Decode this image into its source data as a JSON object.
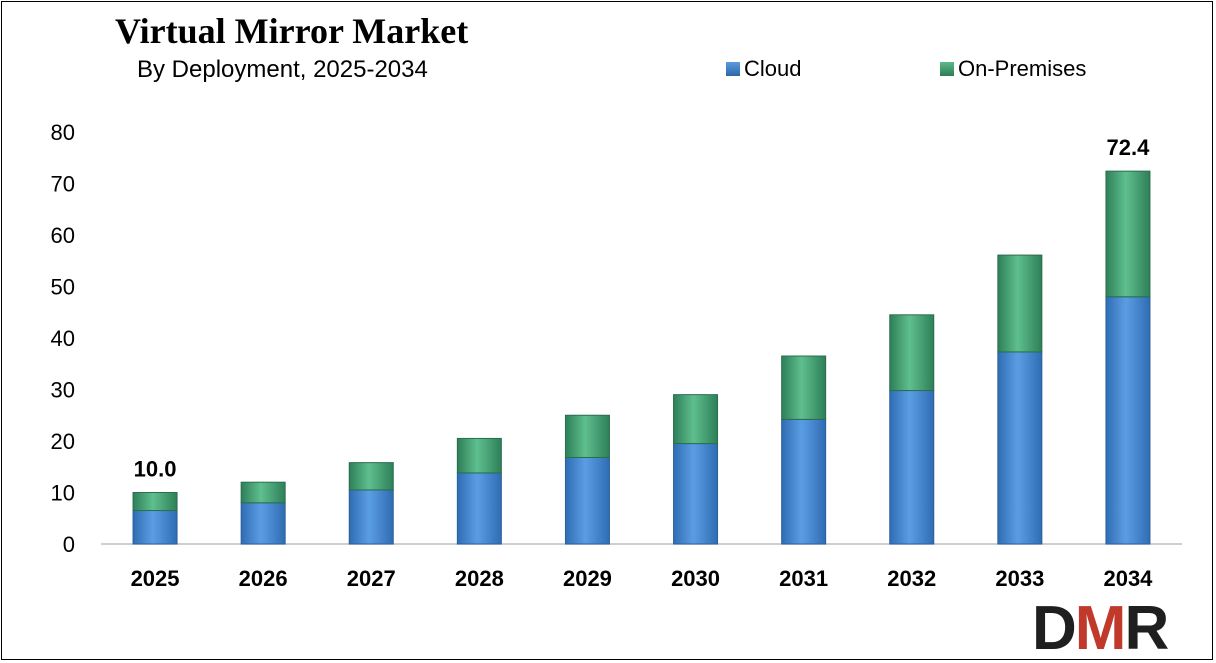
{
  "chart_data": {
    "type": "bar",
    "stacked": true,
    "title": "Virtual Mirror Market",
    "subtitle": "By Deployment, 2025-2034",
    "categories": [
      "2025",
      "2026",
      "2027",
      "2028",
      "2029",
      "2030",
      "2031",
      "2032",
      "2033",
      "2034"
    ],
    "series": [
      {
        "name": "Cloud",
        "color": "#3b7dc4",
        "values": [
          6.5,
          8.0,
          10.5,
          13.8,
          16.8,
          19.5,
          24.2,
          29.8,
          37.3,
          48.0
        ]
      },
      {
        "name": "On-Premises",
        "color": "#3f9a6c",
        "values": [
          3.5,
          4.0,
          5.3,
          6.7,
          8.2,
          9.5,
          12.3,
          14.7,
          18.8,
          24.4
        ]
      }
    ],
    "yticks": [
      "0",
      "10",
      "20",
      "30",
      "40",
      "50",
      "60",
      "70",
      "80"
    ],
    "ylim": [
      0,
      80
    ],
    "data_labels": [
      {
        "category": "2025",
        "text": "10.0"
      },
      {
        "category": "2034",
        "text": "72.4"
      }
    ],
    "grid": false,
    "legend_position": "top-right"
  },
  "logo": {
    "text": "DMR"
  }
}
